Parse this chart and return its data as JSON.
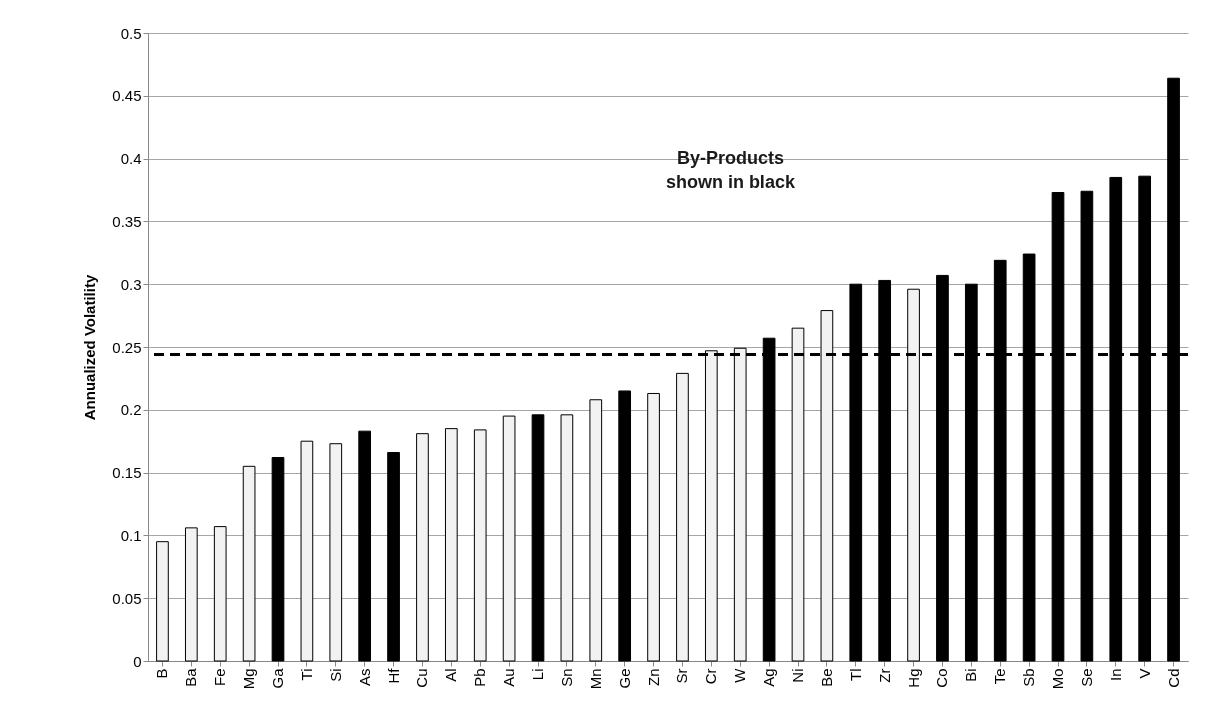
{
  "chart_data": {
    "type": "bar",
    "ylabel": "Annualized Volatility",
    "categories": [
      "B",
      "Ba",
      "Fe",
      "Mg",
      "Ga",
      "Ti",
      "Si",
      "As",
      "Hf",
      "Cu",
      "Al",
      "Pb",
      "Au",
      "Li",
      "Sn",
      "Mn",
      "Ge",
      "Zn",
      "Sr",
      "Cr",
      "W",
      "Ag",
      "Ni",
      "Be",
      "Tl",
      "Zr",
      "Hg",
      "Co",
      "Bi",
      "Te",
      "Sb",
      "Mo",
      "Se",
      "In",
      "V",
      "Cd"
    ],
    "values": [
      0.095,
      0.106,
      0.107,
      0.155,
      0.162,
      0.175,
      0.173,
      0.183,
      0.166,
      0.181,
      0.185,
      0.184,
      0.195,
      0.196,
      0.196,
      0.208,
      0.215,
      0.213,
      0.229,
      0.247,
      0.249,
      0.257,
      0.265,
      0.279,
      0.3,
      0.303,
      0.296,
      0.307,
      0.3,
      0.319,
      0.324,
      0.373,
      0.374,
      0.385,
      0.386,
      0.464
    ],
    "colors": [
      "#f2f2f2",
      "#f2f2f2",
      "#f2f2f2",
      "#f2f2f2",
      "#000000",
      "#f2f2f2",
      "#f2f2f2",
      "#000000",
      "#000000",
      "#f2f2f2",
      "#f2f2f2",
      "#f2f2f2",
      "#f2f2f2",
      "#000000",
      "#f2f2f2",
      "#f2f2f2",
      "#000000",
      "#f2f2f2",
      "#f2f2f2",
      "#f2f2f2",
      "#f2f2f2",
      "#000000",
      "#f2f2f2",
      "#f2f2f2",
      "#000000",
      "#000000",
      "#f2f2f2",
      "#000000",
      "#000000",
      "#000000",
      "#000000",
      "#000000",
      "#000000",
      "#000000",
      "#000000",
      "#000000"
    ],
    "ylim": [
      0,
      0.5
    ],
    "yticks": [
      0,
      0.05,
      0.1,
      0.15,
      0.2,
      0.25,
      0.3,
      0.35,
      0.4,
      0.45,
      0.5
    ],
    "grid": "y",
    "ref_lines": [
      {
        "axis": "y",
        "value": 0.244,
        "color": "#000000",
        "line_style": "dashed"
      }
    ],
    "annotations": [
      "By-Products\nshown in black"
    ]
  }
}
